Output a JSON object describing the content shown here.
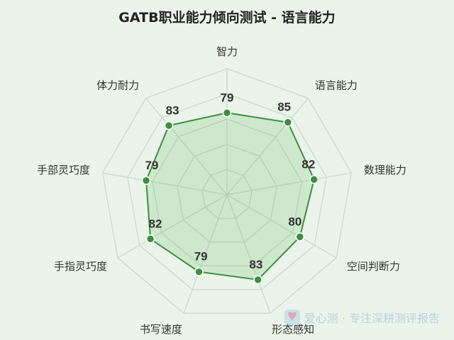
{
  "title": "GATB职业能力倾向测试 - 语言能力",
  "chart_data": {
    "type": "radar",
    "title": "GATB职业能力倾向测试 - 语言能力",
    "axes": [
      "智力",
      "语言能力",
      "数理能力",
      "空间判断力",
      "形态感知",
      "书写速度",
      "手指灵巧度",
      "手部灵巧度",
      "体力耐力"
    ],
    "series": [
      {
        "values": [
          79,
          85,
          82,
          80,
          83,
          79,
          82,
          79,
          83
        ]
      }
    ],
    "range": [
      40,
      100
    ],
    "grid_levels": 5
  },
  "colors": {
    "background": "#eaf4ea",
    "line": "#3d8f3d",
    "fill": "rgba(76,175,80,0.18)",
    "grid": "#cfdccf",
    "point": "#3d8f3d"
  },
  "watermark": {
    "text": "爱心测 · 专注深耕测评报告",
    "icon": "heart-icon"
  }
}
